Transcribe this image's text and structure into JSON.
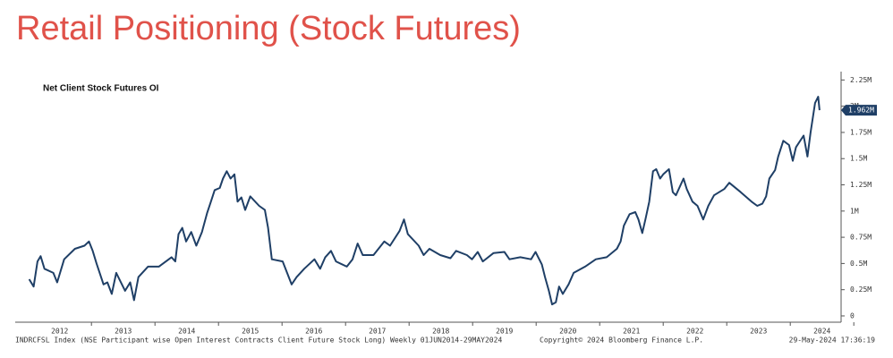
{
  "page_title": "Retail Positioning (Stock Futures)",
  "chart_data": {
    "type": "line",
    "title": "Net Client Stock Futures OI",
    "footer_left": "INDRCFSL Index (NSE Participant wise Open Interest Contracts Client Future Stock Long)  Weekly 01JUN2014-29MAY2024",
    "footer_center": "Copyright© 2024 Bloomberg Finance L.P.",
    "footer_right": "29-May-2024 17:36:19",
    "x": [
      2012.02,
      2012.09,
      2012.15,
      2012.2,
      2012.26,
      2012.4,
      2012.46,
      2012.57,
      2012.74,
      2012.89,
      2012.96,
      2013.02,
      2013.08,
      2013.19,
      2013.25,
      2013.32,
      2013.39,
      2013.53,
      2013.61,
      2013.67,
      2013.74,
      2013.89,
      2014.06,
      2014.26,
      2014.32,
      2014.37,
      2014.43,
      2014.49,
      2014.57,
      2014.65,
      2014.74,
      2014.82,
      2014.88,
      2014.94,
      2015.02,
      2015.07,
      2015.13,
      2015.19,
      2015.25,
      2015.3,
      2015.36,
      2015.42,
      2015.5,
      2015.64,
      2015.73,
      2015.78,
      2015.84,
      2016.01,
      2016.15,
      2016.23,
      2016.35,
      2016.51,
      2016.6,
      2016.68,
      2016.77,
      2016.85,
      2017.02,
      2017.11,
      2017.19,
      2017.27,
      2017.44,
      2017.61,
      2017.7,
      2017.85,
      2017.92,
      2017.98,
      2018.15,
      2018.23,
      2018.32,
      2018.49,
      2018.65,
      2018.74,
      2018.91,
      2018.99,
      2019.08,
      2019.16,
      2019.33,
      2019.5,
      2019.58,
      2019.75,
      2019.92,
      2019.99,
      2020.09,
      2020.14,
      2020.2,
      2020.25,
      2020.31,
      2020.36,
      2020.42,
      2020.51,
      2020.59,
      2020.77,
      2020.94,
      2021.11,
      2021.27,
      2021.33,
      2021.38,
      2021.47,
      2021.56,
      2021.61,
      2021.67,
      2021.72,
      2021.78,
      2021.84,
      2021.89,
      2021.95,
      2022.0,
      2022.09,
      2022.15,
      2022.2,
      2022.32,
      2022.37,
      2022.46,
      2022.54,
      2022.63,
      2022.71,
      2022.8,
      2022.96,
      2023.04,
      2023.22,
      2023.39,
      2023.48,
      2023.56,
      2023.62,
      2023.67,
      2023.76,
      2023.81,
      2023.89,
      2023.98,
      2024.04,
      2024.09,
      2024.21,
      2024.27,
      2024.32,
      2024.39,
      2024.44,
      2024.46
    ],
    "series": [
      {
        "color": "#1f3f66",
        "values": [
          0.35,
          0.28,
          0.52,
          0.57,
          0.45,
          0.41,
          0.32,
          0.54,
          0.64,
          0.67,
          0.71,
          0.62,
          0.5,
          0.3,
          0.32,
          0.21,
          0.41,
          0.24,
          0.32,
          0.15,
          0.37,
          0.47,
          0.47,
          0.56,
          0.52,
          0.78,
          0.84,
          0.71,
          0.8,
          0.67,
          0.8,
          0.98,
          1.09,
          1.2,
          1.22,
          1.31,
          1.38,
          1.31,
          1.35,
          1.09,
          1.13,
          1.01,
          1.14,
          1.05,
          1.01,
          0.84,
          0.54,
          0.52,
          0.3,
          0.37,
          0.45,
          0.54,
          0.45,
          0.56,
          0.62,
          0.52,
          0.47,
          0.54,
          0.69,
          0.58,
          0.58,
          0.71,
          0.67,
          0.81,
          0.92,
          0.78,
          0.67,
          0.58,
          0.64,
          0.58,
          0.55,
          0.62,
          0.58,
          0.54,
          0.61,
          0.52,
          0.6,
          0.61,
          0.54,
          0.56,
          0.54,
          0.61,
          0.49,
          0.37,
          0.24,
          0.11,
          0.13,
          0.28,
          0.21,
          0.3,
          0.41,
          0.47,
          0.54,
          0.56,
          0.64,
          0.71,
          0.86,
          0.97,
          0.99,
          0.92,
          0.79,
          0.92,
          1.09,
          1.38,
          1.4,
          1.31,
          1.35,
          1.4,
          1.18,
          1.15,
          1.31,
          1.21,
          1.09,
          1.05,
          0.92,
          1.05,
          1.15,
          1.21,
          1.27,
          1.18,
          1.09,
          1.05,
          1.07,
          1.14,
          1.31,
          1.39,
          1.52,
          1.67,
          1.63,
          1.48,
          1.61,
          1.72,
          1.52,
          1.75,
          2.03,
          2.09,
          1.962
        ]
      }
    ],
    "last_value_tag": {
      "value": 1.962,
      "label": "1.962M"
    },
    "xlim": [
      2011.8,
      2024.8
    ],
    "xticks": [
      {
        "value": 2012.5,
        "label": "2012"
      },
      {
        "value": 2013.5,
        "label": "2013"
      },
      {
        "value": 2014.5,
        "label": "2014"
      },
      {
        "value": 2015.5,
        "label": "2015"
      },
      {
        "value": 2016.5,
        "label": "2016"
      },
      {
        "value": 2017.5,
        "label": "2017"
      },
      {
        "value": 2018.5,
        "label": "2018"
      },
      {
        "value": 2019.5,
        "label": "2019"
      },
      {
        "value": 2020.5,
        "label": "2020"
      },
      {
        "value": 2021.5,
        "label": "2021"
      },
      {
        "value": 2022.5,
        "label": "2022"
      },
      {
        "value": 2023.5,
        "label": "2023"
      },
      {
        "value": 2024.5,
        "label": "2024"
      }
    ],
    "ylim": [
      -0.06,
      2.33
    ],
    "yticks": [
      0,
      {
        "value": 0.25,
        "label": "0.25M"
      },
      {
        "value": 0.5,
        "label": "0.5M"
      },
      {
        "value": 0.75,
        "label": "0.75M"
      },
      {
        "value": 1,
        "label": "1M"
      },
      {
        "value": 1.25,
        "label": "1.25M"
      },
      {
        "value": 1.5,
        "label": "1.5M"
      },
      {
        "value": 1.75,
        "label": "1.75M"
      },
      {
        "value": 2,
        "label": "2M"
      },
      {
        "value": 2.25,
        "label": "2.25M"
      }
    ]
  }
}
